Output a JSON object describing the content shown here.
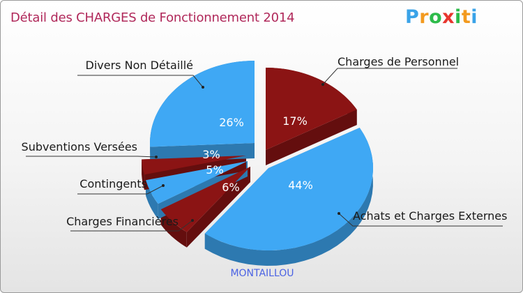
{
  "title": "Détail des CHARGES de Fonctionnement 2014",
  "logo": {
    "letters": [
      "P",
      "r",
      "o",
      "x",
      "i",
      "t",
      "i"
    ],
    "colors": [
      "#3aa3e8",
      "#f39a1e",
      "#2dbb4a",
      "#e8352e",
      "#2dbb4a",
      "#f39a1e",
      "#3aa3e8"
    ]
  },
  "footer": "MONTAILLOU",
  "chart_data": {
    "type": "pie",
    "title": "Détail des CHARGES de Fonctionnement 2014",
    "slices": [
      {
        "label": "Charges de Personnel",
        "value": 17,
        "pct_label": "17%",
        "color": "#8b1414"
      },
      {
        "label": "Achats et Charges Externes",
        "value": 44,
        "pct_label": "44%",
        "color": "#3fa8f4"
      },
      {
        "label": "Charges Financières",
        "value": 6,
        "pct_label": "6%",
        "color": "#8b1414"
      },
      {
        "label": "Contingents",
        "value": 5,
        "pct_label": "5%",
        "color": "#3fa8f4"
      },
      {
        "label": "Subventions Versées",
        "value": 3,
        "pct_label": "3%",
        "color": "#8b1414"
      },
      {
        "label": "Divers Non Détaillé",
        "value": 26,
        "pct_label": "26%",
        "color": "#3fa8f4"
      }
    ]
  }
}
